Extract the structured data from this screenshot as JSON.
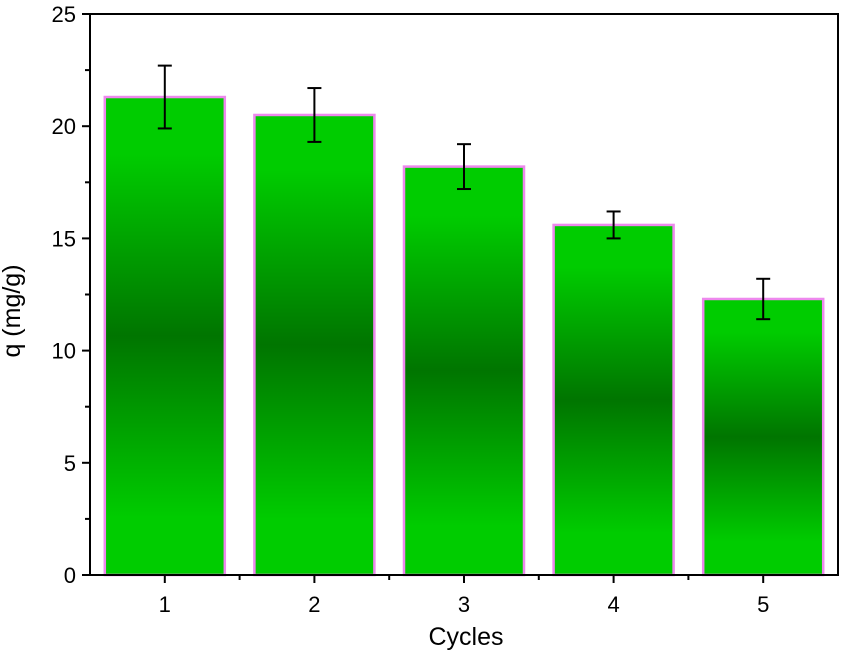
{
  "chart_data": {
    "type": "bar",
    "title": "",
    "xlabel": "Cycles",
    "ylabel": "q (mg/g)",
    "categories": [
      "1",
      "2",
      "3",
      "4",
      "5"
    ],
    "values": [
      21.3,
      20.5,
      18.2,
      15.6,
      12.3
    ],
    "error_upper": [
      22.7,
      21.7,
      19.2,
      16.2,
      13.2
    ],
    "error_lower": [
      19.9,
      19.3,
      17.2,
      15.0,
      11.4
    ],
    "ylim": [
      0,
      25
    ],
    "yticks": [
      0,
      5,
      10,
      15,
      20,
      25
    ],
    "yticks_minor_step": 2.5,
    "grid": false,
    "legend": "none",
    "colors": {
      "bar_light": "#00cc00",
      "bar_dark": "#007500",
      "bar_border": "#ee88ee",
      "error_bar": "#000000",
      "axis": "#000000"
    }
  }
}
